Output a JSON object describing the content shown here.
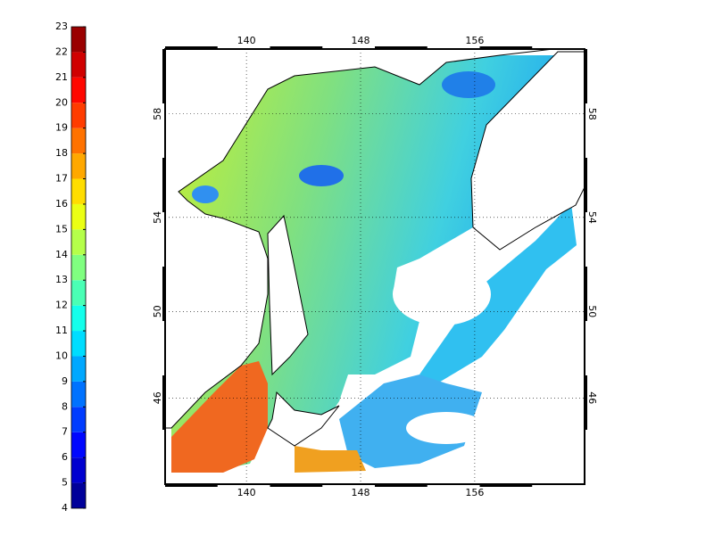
{
  "colorbar": {
    "ticks": [
      4,
      5,
      6,
      7,
      8,
      9,
      10,
      11,
      12,
      13,
      14,
      15,
      16,
      17,
      18,
      19,
      20,
      21,
      22,
      23
    ],
    "lim": [
      4,
      23
    ],
    "colormap": "jet"
  },
  "map": {
    "projection": "mercator",
    "xlim": [
      134.3,
      163.7
    ],
    "ylim": [
      41.7,
      60.3
    ],
    "xticks": [
      140,
      148,
      156
    ],
    "yticks": [
      46,
      50,
      54,
      58
    ],
    "grid": true
  }
}
